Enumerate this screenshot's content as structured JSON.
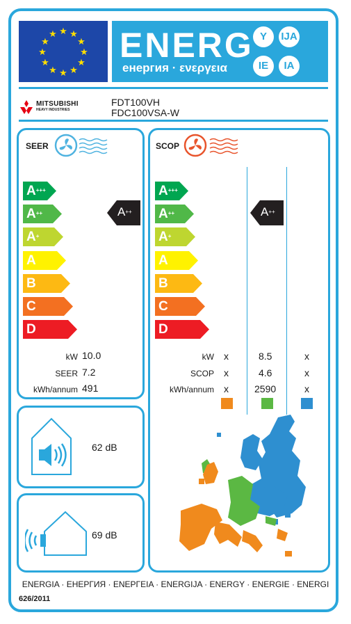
{
  "header": {
    "energy_word": "ENERG",
    "energy_sub": "енергия · ενεργεια",
    "suffixes": [
      "Y",
      "IJA",
      "IE",
      "IA"
    ]
  },
  "brand": {
    "name": "MITSUBISHI",
    "subline": "HEAVY INDUSTRIES"
  },
  "models": {
    "indoor": "FDT100VH",
    "outdoor": "FDC100VSA-W"
  },
  "cooling": {
    "title": "SEER",
    "classes": [
      {
        "letter": "A",
        "sup": "+++",
        "color": "#00a651"
      },
      {
        "letter": "A",
        "sup": "++",
        "color": "#50b848"
      },
      {
        "letter": "A",
        "sup": "+",
        "color": "#bed630"
      },
      {
        "letter": "A",
        "sup": "",
        "color": "#fff200"
      },
      {
        "letter": "B",
        "sup": "",
        "color": "#fdb913"
      },
      {
        "letter": "C",
        "sup": "",
        "color": "#f37021"
      },
      {
        "letter": "D",
        "sup": "",
        "color": "#ed1c24"
      }
    ],
    "rating": {
      "letter": "A",
      "sup": "++"
    },
    "rows": [
      {
        "label": "kW",
        "value": "10.0"
      },
      {
        "label": "SEER",
        "value": "7.2"
      },
      {
        "label": "kWh/annum",
        "value": "491"
      }
    ]
  },
  "heating": {
    "title": "SCOP",
    "rating": {
      "letter": "A",
      "sup": "++"
    },
    "rows": [
      {
        "label": "kW",
        "values": [
          "x",
          "8.5",
          "x"
        ]
      },
      {
        "label": "SCOP",
        "values": [
          "x",
          "4.6",
          "x"
        ]
      },
      {
        "label": "kWh/annum",
        "values": [
          "x",
          "2590",
          "x"
        ]
      }
    ],
    "zone_colors": [
      "#f08a1d",
      "#5bb843",
      "#2e8fd0"
    ]
  },
  "noise": {
    "indoor_value": "62",
    "indoor_unit": "dB",
    "outdoor_value": "69",
    "outdoor_unit": "dB"
  },
  "footer": {
    "languages": "ENERGIA · ЕНЕРГИЯ · ΕΝΕΡΓΕΙΑ · ENERGIJA · ENERGY · ENERGIE · ENERGI",
    "regulation": "626/2011"
  },
  "colors": {
    "frame_blue": "#2aa7dc",
    "eu_blue": "#1d47a8",
    "eu_star": "#ffde00",
    "pointer": "#231f20"
  }
}
